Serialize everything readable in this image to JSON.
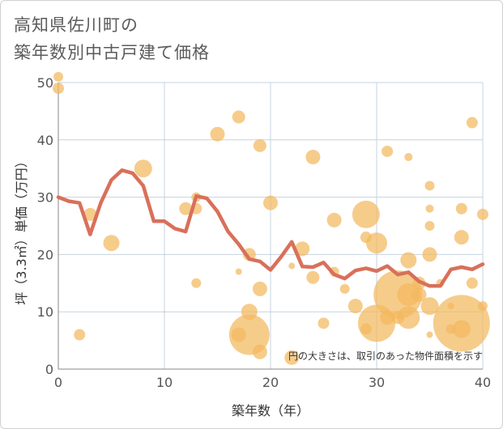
{
  "chart_data": {
    "type": "scatter",
    "title_lines": [
      "高知県佐川町の",
      "築年数別中古戸建て価格"
    ],
    "xlabel": "築年数（年）",
    "ylabel": "坪（3.3㎡）単価（万円）",
    "xlim": [
      0,
      40
    ],
    "ylim": [
      0,
      50
    ],
    "xticks": [
      0,
      10,
      20,
      30,
      40
    ],
    "yticks": [
      0,
      10,
      20,
      30,
      40,
      50
    ],
    "grid": true,
    "annotation": "円の大きさは、取引のあった物件面積を示す",
    "colors": {
      "bubble": "#f2b95e",
      "line": "#d9705a",
      "grid": "#c5d3e0",
      "plot_bg": "#ffffff"
    },
    "series": [
      {
        "name": "average",
        "kind": "line",
        "x": [
          0,
          1,
          2,
          3,
          4,
          5,
          6,
          7,
          8,
          9,
          10,
          11,
          12,
          13,
          14,
          15,
          16,
          17,
          18,
          19,
          20,
          21,
          22,
          23,
          24,
          25,
          26,
          27,
          28,
          29,
          30,
          31,
          32,
          33,
          34,
          35,
          36,
          37,
          38,
          39,
          40
        ],
        "y": [
          30,
          29.3,
          29,
          23.5,
          29,
          33,
          34.7,
          34.2,
          32,
          25.8,
          25.8,
          24.5,
          24,
          30.2,
          29.8,
          27.5,
          24,
          21.8,
          19.2,
          18.8,
          17.3,
          19.6,
          22.2,
          17.9,
          17.8,
          18.6,
          16.5,
          15.8,
          17.2,
          17.6,
          17.1,
          18,
          16.5,
          16.9,
          15.3,
          14.5,
          14.5,
          17.4,
          17.8,
          17.4,
          18.3
        ]
      },
      {
        "name": "transactions",
        "kind": "bubble",
        "points": [
          {
            "x": 0,
            "y": 51,
            "s": 6
          },
          {
            "x": 0,
            "y": 49,
            "s": 7
          },
          {
            "x": 2,
            "y": 6,
            "s": 7
          },
          {
            "x": 3,
            "y": 27,
            "s": 8
          },
          {
            "x": 5,
            "y": 22,
            "s": 10
          },
          {
            "x": 8,
            "y": 35,
            "s": 11
          },
          {
            "x": 10,
            "y": 10,
            "s": 1
          },
          {
            "x": 12,
            "y": 28,
            "s": 8
          },
          {
            "x": 13,
            "y": 30,
            "s": 6
          },
          {
            "x": 13,
            "y": 28,
            "s": 7
          },
          {
            "x": 13,
            "y": 15,
            "s": 6
          },
          {
            "x": 15,
            "y": 41,
            "s": 9
          },
          {
            "x": 17,
            "y": 44,
            "s": 8
          },
          {
            "x": 17,
            "y": 17,
            "s": 4
          },
          {
            "x": 17,
            "y": 6,
            "s": 9
          },
          {
            "x": 18,
            "y": 20,
            "s": 8
          },
          {
            "x": 18,
            "y": 10,
            "s": 10
          },
          {
            "x": 18,
            "y": 6,
            "s": 25
          },
          {
            "x": 19,
            "y": 39,
            "s": 8
          },
          {
            "x": 19,
            "y": 14,
            "s": 9
          },
          {
            "x": 19,
            "y": 3,
            "s": 9
          },
          {
            "x": 20,
            "y": 29,
            "s": 9
          },
          {
            "x": 22,
            "y": 18,
            "s": 4
          },
          {
            "x": 22,
            "y": 2,
            "s": 9
          },
          {
            "x": 23,
            "y": 21,
            "s": 9
          },
          {
            "x": 24,
            "y": 37,
            "s": 9
          },
          {
            "x": 24,
            "y": 16,
            "s": 8
          },
          {
            "x": 25,
            "y": 8,
            "s": 7
          },
          {
            "x": 26,
            "y": 26,
            "s": 9
          },
          {
            "x": 26,
            "y": 17,
            "s": 6
          },
          {
            "x": 27,
            "y": 14,
            "s": 6
          },
          {
            "x": 28,
            "y": 11,
            "s": 9
          },
          {
            "x": 29,
            "y": 27,
            "s": 17
          },
          {
            "x": 29,
            "y": 23,
            "s": 7
          },
          {
            "x": 29,
            "y": 7,
            "s": 7
          },
          {
            "x": 30,
            "y": 22,
            "s": 13
          },
          {
            "x": 30,
            "y": 8,
            "s": 23
          },
          {
            "x": 31,
            "y": 38,
            "s": 7
          },
          {
            "x": 31,
            "y": 9,
            "s": 9
          },
          {
            "x": 32,
            "y": 9,
            "s": 8
          },
          {
            "x": 32,
            "y": 13,
            "s": 30
          },
          {
            "x": 33,
            "y": 37,
            "s": 5
          },
          {
            "x": 33,
            "y": 19,
            "s": 10
          },
          {
            "x": 33,
            "y": 13,
            "s": 14
          },
          {
            "x": 33,
            "y": 9,
            "s": 14
          },
          {
            "x": 34,
            "y": 15,
            "s": 8
          },
          {
            "x": 34,
            "y": 13,
            "s": 9
          },
          {
            "x": 35,
            "y": 32,
            "s": 6
          },
          {
            "x": 35,
            "y": 28,
            "s": 5
          },
          {
            "x": 35,
            "y": 25,
            "s": 6
          },
          {
            "x": 35,
            "y": 20,
            "s": 9
          },
          {
            "x": 35,
            "y": 11,
            "s": 11
          },
          {
            "x": 35,
            "y": 6,
            "s": 4
          },
          {
            "x": 36,
            "y": 15,
            "s": 5
          },
          {
            "x": 37,
            "y": 11,
            "s": 4
          },
          {
            "x": 37,
            "y": 7,
            "s": 6
          },
          {
            "x": 38,
            "y": 28,
            "s": 7
          },
          {
            "x": 38,
            "y": 23,
            "s": 9
          },
          {
            "x": 38,
            "y": 8,
            "s": 35
          },
          {
            "x": 38,
            "y": 7,
            "s": 11
          },
          {
            "x": 39,
            "y": 43,
            "s": 7
          },
          {
            "x": 39,
            "y": 15,
            "s": 7
          },
          {
            "x": 40,
            "y": 27,
            "s": 7
          },
          {
            "x": 40,
            "y": 11,
            "s": 6
          }
        ]
      }
    ]
  }
}
